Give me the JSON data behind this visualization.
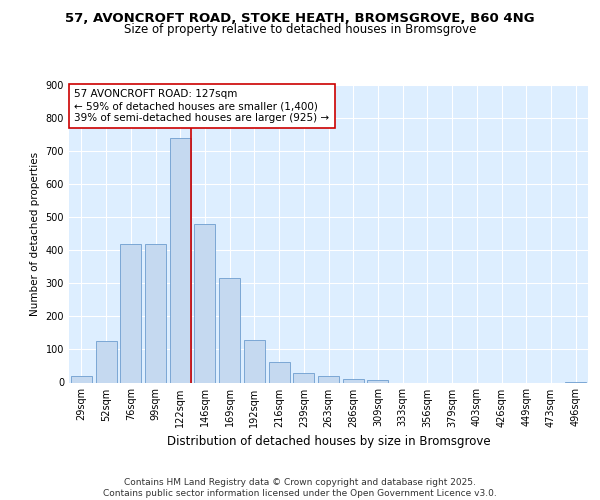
{
  "title": "57, AVONCROFT ROAD, STOKE HEATH, BROMSGROVE, B60 4NG",
  "subtitle": "Size of property relative to detached houses in Bromsgrove",
  "xlabel": "Distribution of detached houses by size in Bromsgrove",
  "ylabel": "Number of detached properties",
  "categories": [
    "29sqm",
    "52sqm",
    "76sqm",
    "99sqm",
    "122sqm",
    "146sqm",
    "169sqm",
    "192sqm",
    "216sqm",
    "239sqm",
    "263sqm",
    "286sqm",
    "309sqm",
    "333sqm",
    "356sqm",
    "379sqm",
    "403sqm",
    "426sqm",
    "449sqm",
    "473sqm",
    "496sqm"
  ],
  "values": [
    20,
    125,
    420,
    420,
    740,
    480,
    315,
    130,
    63,
    30,
    20,
    10,
    7,
    0,
    0,
    0,
    0,
    0,
    0,
    0,
    3
  ],
  "bar_color": "#c5d9f0",
  "bar_edgecolor": "#7ba7d4",
  "background_color": "#ffffff",
  "plot_bg_color": "#ddeeff",
  "grid_color": "#ffffff",
  "vline_x": 4.42,
  "vline_color": "#cc0000",
  "annotation_text": "57 AVONCROFT ROAD: 127sqm\n← 59% of detached houses are smaller (1,400)\n39% of semi-detached houses are larger (925) →",
  "annotation_box_color": "#ffffff",
  "annotation_box_edgecolor": "#cc0000",
  "footer_text": "Contains HM Land Registry data © Crown copyright and database right 2025.\nContains public sector information licensed under the Open Government Licence v3.0.",
  "ylim": [
    0,
    900
  ],
  "yticks": [
    0,
    100,
    200,
    300,
    400,
    500,
    600,
    700,
    800,
    900
  ],
  "title_fontsize": 9.5,
  "subtitle_fontsize": 8.5,
  "xlabel_fontsize": 8.5,
  "ylabel_fontsize": 7.5,
  "tick_fontsize": 7,
  "annotation_fontsize": 7.5,
  "footer_fontsize": 6.5
}
